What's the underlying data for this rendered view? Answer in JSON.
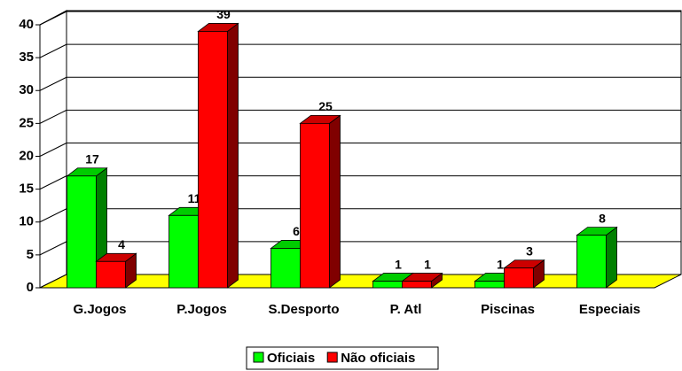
{
  "chart_data": {
    "type": "bar",
    "categories": [
      "G.Jogos",
      "P.Jogos",
      "S.Desporto",
      "P. Atl",
      "Piscinas",
      "Especiais"
    ],
    "series": [
      {
        "name": "Oficiais",
        "color": "#00ff00",
        "values": [
          17,
          11,
          6,
          1,
          1,
          8
        ]
      },
      {
        "name": "Não oficiais",
        "color": "#ff0000",
        "values": [
          4,
          39,
          25,
          1,
          3,
          null
        ]
      }
    ],
    "ylim": [
      0,
      40
    ],
    "yticks": [
      0,
      5,
      10,
      15,
      20,
      25,
      30,
      35,
      40
    ],
    "grid": true,
    "legend": "bottom"
  }
}
